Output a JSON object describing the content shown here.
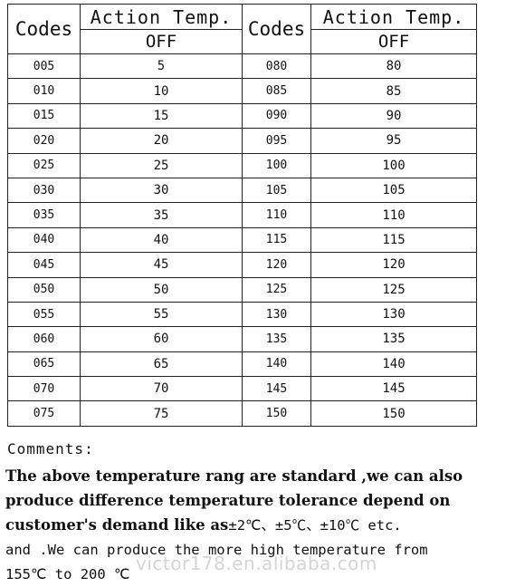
{
  "table": {
    "header_codes": "Codes",
    "header_action": "Action Temp.",
    "header_off": "OFF",
    "left": [
      {
        "code": "005",
        "temp": "5"
      },
      {
        "code": "010",
        "temp": "10"
      },
      {
        "code": "015",
        "temp": "15"
      },
      {
        "code": "020",
        "temp": "20"
      },
      {
        "code": "025",
        "temp": "25"
      },
      {
        "code": "030",
        "temp": "30"
      },
      {
        "code": "035",
        "temp": "35"
      },
      {
        "code": "040",
        "temp": "40"
      },
      {
        "code": "045",
        "temp": "45"
      },
      {
        "code": "050",
        "temp": "50"
      },
      {
        "code": "055",
        "temp": "55"
      },
      {
        "code": "060",
        "temp": "60"
      },
      {
        "code": "065",
        "temp": "65"
      },
      {
        "code": "070",
        "temp": "70"
      },
      {
        "code": "075",
        "temp": "75"
      }
    ],
    "right": [
      {
        "code": "080",
        "temp": "80"
      },
      {
        "code": "085",
        "temp": "85"
      },
      {
        "code": "090",
        "temp": "90"
      },
      {
        "code": "095",
        "temp": "95"
      },
      {
        "code": "100",
        "temp": "100"
      },
      {
        "code": "105",
        "temp": "105"
      },
      {
        "code": "110",
        "temp": "110"
      },
      {
        "code": "115",
        "temp": "115"
      },
      {
        "code": "120",
        "temp": "120"
      },
      {
        "code": "125",
        "temp": "125"
      },
      {
        "code": "130",
        "temp": "130"
      },
      {
        "code": "135",
        "temp": "135"
      },
      {
        "code": "140",
        "temp": "140"
      },
      {
        "code": "145",
        "temp": "145"
      },
      {
        "code": "150",
        "temp": "150"
      }
    ]
  },
  "comments": {
    "label": "Comments:",
    "line1": "The above temperature rang are standard ,we can also",
    "line2": "produce difference temperature tolerance depend on",
    "line3_bold": "customer's demand  like as",
    "line3_rest": "±2℃、±5℃、±10℃ etc.",
    "line4": "and .We can produce the more high temperature from",
    "line5": "155℃ to 200 ℃"
  },
  "watermark": "victor178.en.alibaba.com"
}
